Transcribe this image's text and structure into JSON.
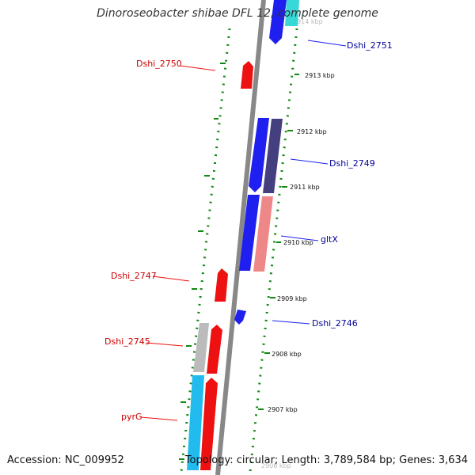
{
  "title": "Dinoroseobacter shibae DFL 12, complete genome",
  "footer": {
    "accession_label": "Accession:",
    "accession": "NC_009952",
    "topology_label": "Topology:",
    "topology": "circular",
    "length_label": "Length:",
    "length": "3,789,584 bp",
    "genes_label": "Genes:",
    "genes": "3,634"
  },
  "colors": {
    "forward_gene": "#1f1fef",
    "reverse_gene": "#ee1111",
    "navy_gene": "#443f7f",
    "pink_gene": "#ee8888",
    "cyan_gene": "#22bbee",
    "gray_gene": "#bbbbbb",
    "tick_green": "#118811",
    "backbone": "#888888",
    "forward_label": "#000099",
    "reverse_label": "#cc0000"
  },
  "ticks": [
    {
      "label": "2914 kbp"
    },
    {
      "label": "2913 kbp"
    },
    {
      "label": "2912 kbp"
    },
    {
      "label": "2911 kbp"
    },
    {
      "label": "2910 kbp"
    },
    {
      "label": "2909 kbp"
    },
    {
      "label": "2908 kbp"
    },
    {
      "label": "2907 kbp"
    },
    {
      "label": "2906 kbp"
    }
  ],
  "gene_labels": [
    {
      "name": "Dshi_2751",
      "strand": "forward"
    },
    {
      "name": "Dshi_2750",
      "strand": "reverse"
    },
    {
      "name": "Dshi_2749",
      "strand": "forward"
    },
    {
      "name": "gltX",
      "strand": "forward"
    },
    {
      "name": "Dshi_2747",
      "strand": "reverse"
    },
    {
      "name": "Dshi_2746",
      "strand": "forward"
    },
    {
      "name": "Dshi_2745",
      "strand": "reverse"
    },
    {
      "name": "pyrG",
      "strand": "reverse"
    }
  ]
}
